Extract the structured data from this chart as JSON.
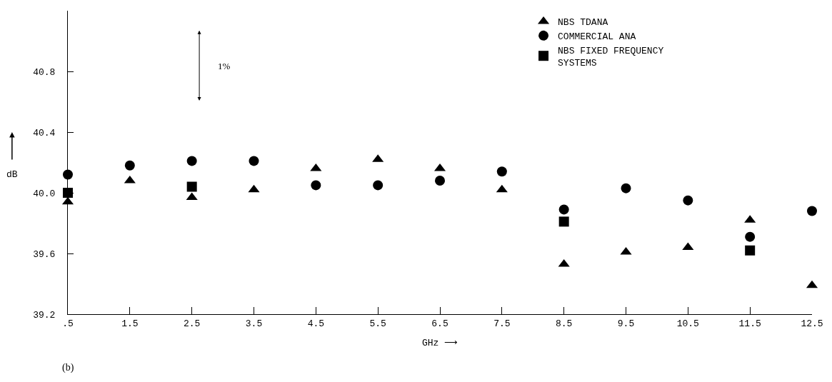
{
  "chart_data": {
    "type": "scatter",
    "x": [
      0.5,
      1.5,
      2.5,
      3.5,
      4.5,
      5.5,
      6.5,
      7.5,
      8.5,
      9.5,
      10.5,
      11.5,
      12.5
    ],
    "series": [
      {
        "name": "NBS TDANA",
        "color": "#000000",
        "marker": "triangle",
        "values": [
          39.94,
          40.08,
          39.97,
          40.02,
          40.16,
          40.22,
          40.16,
          40.02,
          39.53,
          39.61,
          39.64,
          39.82,
          39.39
        ]
      },
      {
        "name": "COMMERCIAL ANA",
        "color": "#000000",
        "marker": "circle",
        "values": [
          40.12,
          40.18,
          40.21,
          40.21,
          40.05,
          40.05,
          40.08,
          40.14,
          39.89,
          40.03,
          39.95,
          39.71,
          39.88
        ]
      },
      {
        "name": "NBS FIXED FREQUENCY\nSYSTEMS",
        "color": "#000000",
        "marker": "square",
        "values": [
          40.0,
          null,
          40.04,
          null,
          null,
          null,
          null,
          null,
          39.81,
          null,
          null,
          39.62,
          null
        ]
      }
    ],
    "xlabel": "GHz ⟶",
    "ylabel": "dB",
    "xlim": [
      0.5,
      12.5
    ],
    "xticks": [
      {
        "value": 0.5,
        "label": ".5"
      },
      1.5,
      2.5,
      3.5,
      4.5,
      5.5,
      6.5,
      7.5,
      8.5,
      9.5,
      10.5,
      11.5,
      12.5
    ],
    "ylim": [
      39.2,
      41.2
    ],
    "yticks": [
      {
        "value": 39.2,
        "label": "39.2"
      },
      {
        "value": 39.6,
        "label": "39.6"
      },
      {
        "value": 40.0,
        "label": "40.0"
      },
      {
        "value": 40.4,
        "label": "40.4"
      },
      {
        "value": 40.8,
        "label": "40.8"
      }
    ],
    "annotations": [
      "1%",
      "(b)"
    ],
    "legend": "top right"
  }
}
